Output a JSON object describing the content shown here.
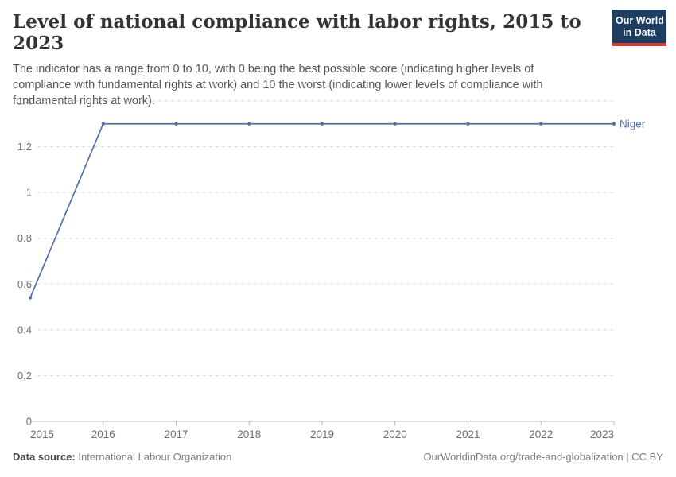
{
  "header": {
    "title": "Level of national compliance with labor rights, 2015 to 2023",
    "subtitle": "The indicator has a range from 0 to 10, with 0 being the best possible score (indicating higher levels of compliance with fundamental rights at work) and 10 the worst (indicating lower levels of compliance with fundamental rights at work).",
    "logo": {
      "line1": "Our World",
      "line2": "in Data",
      "bg_color": "#1d3d63",
      "stripe_color": "#d73c34",
      "text_color": "#ffffff"
    }
  },
  "chart_data": {
    "type": "line",
    "title": "Level of national compliance with labor rights, 2015 to 2023",
    "x": [
      2015,
      2016,
      2017,
      2018,
      2019,
      2020,
      2021,
      2022,
      2023
    ],
    "series": [
      {
        "name": "Niger",
        "values": [
          0.54,
          1.3,
          1.3,
          1.3,
          1.3,
          1.3,
          1.3,
          1.3,
          1.3
        ],
        "color": "#4f6eaa"
      }
    ],
    "xlabel": "",
    "ylabel": "",
    "ylim": [
      0,
      1.4
    ],
    "yticks": [
      0,
      0.2,
      0.4,
      0.6,
      0.8,
      1,
      1.2,
      1.4
    ],
    "ytick_labels": [
      "0",
      "0.2",
      "0.4",
      "0.6",
      "0.8",
      "1",
      "1.2",
      "1.4"
    ],
    "xtick_labels": [
      "2015",
      "2016",
      "2017",
      "2018",
      "2019",
      "2020",
      "2021",
      "2022",
      "2023"
    ],
    "grid": "horizontal-dashed",
    "grid_color": "#dcdcdc",
    "axis_color": "#b8b8b8",
    "tick_label_color": "#6e6e6e",
    "legend_position": "end-of-line",
    "markers": true
  },
  "footer": {
    "source_label": "Data source:",
    "source_value": "International Labour Organization",
    "credit": "OurWorldinData.org/trade-and-globalization | CC BY"
  }
}
